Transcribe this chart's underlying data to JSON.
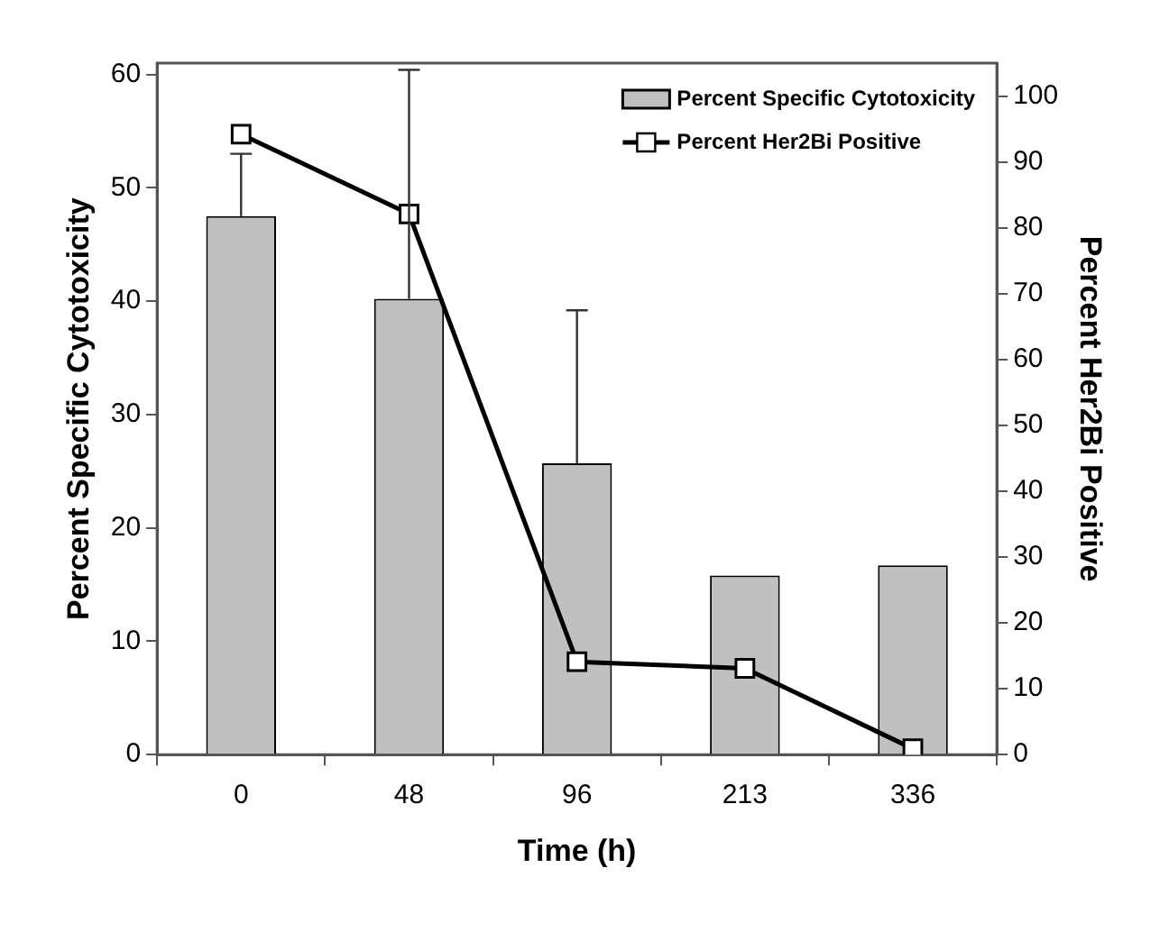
{
  "chart_data": {
    "type": "bar",
    "xlabel": "Time (h)",
    "ylabel": "Percent Specific Cytotoxicity",
    "y2label": "Percent Her2Bi Positive",
    "categories": [
      "0",
      "48",
      "96",
      "213",
      "336"
    ],
    "series": [
      {
        "name": "Percent Specific Cytotoxicity",
        "type": "bar",
        "color": "#c0c0c0",
        "values": [
          47.5,
          40.2,
          25.7,
          15.8,
          16.7
        ],
        "errors": [
          [
            47.5,
            53.0
          ],
          [
            40.2,
            60.4
          ],
          [
            25.7,
            39.2
          ],
          null,
          null
        ]
      },
      {
        "name": "Percent Her2Bi Positive",
        "type": "line",
        "axis": "y2",
        "color": "#000000",
        "marker": "square",
        "values": [
          94.2,
          82.1,
          14.1,
          13.1,
          0.9
        ]
      }
    ],
    "ylim": [
      0,
      61
    ],
    "yticks": [
      0,
      10,
      20,
      30,
      40,
      50,
      60
    ],
    "y2lim": [
      0,
      105
    ],
    "y2ticks": [
      0,
      10,
      20,
      30,
      40,
      50,
      60,
      70,
      80,
      90,
      100
    ],
    "grid": false,
    "legend": "top right"
  }
}
